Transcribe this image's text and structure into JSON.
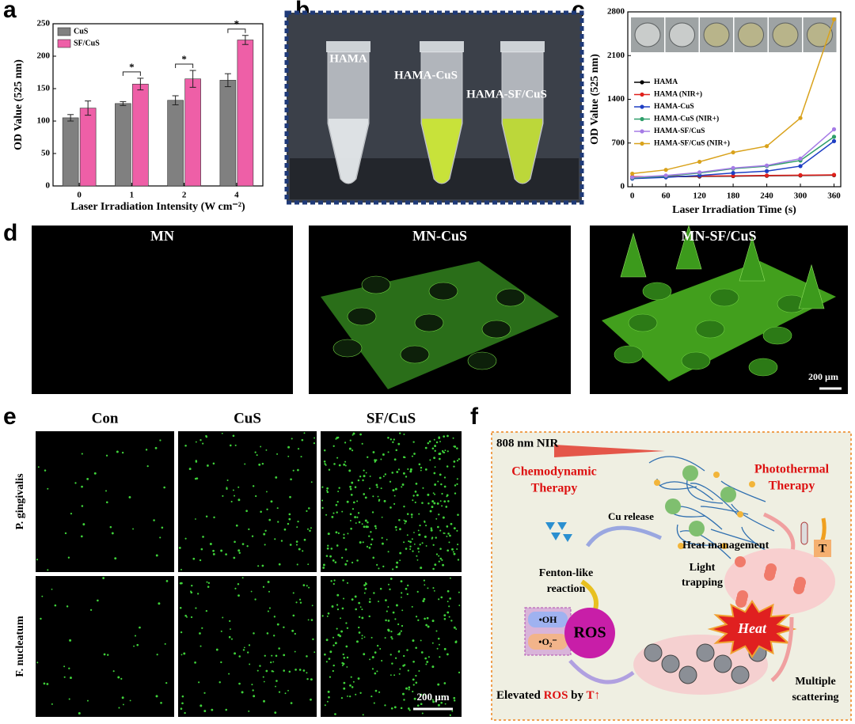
{
  "panel_labels": [
    "a",
    "b",
    "c",
    "d",
    "e",
    "f"
  ],
  "chart_data": [
    {
      "type": "bar",
      "xlabel": "Laser Irradiation Intensity (W cm⁻²)",
      "ylabel": "OD Value (525 nm)",
      "categories": [
        "0",
        "1",
        "2",
        "4"
      ],
      "series": [
        {
          "name": "CuS",
          "color": "#808080",
          "values": [
            105,
            127,
            132,
            163
          ],
          "errors": [
            5,
            3,
            7,
            10
          ]
        },
        {
          "name": "SF/CuS",
          "color": "#ee5fa7",
          "values": [
            120,
            157,
            165,
            225
          ],
          "errors": [
            11,
            9,
            13,
            7
          ]
        }
      ],
      "significance_labels": [
        null,
        "*",
        "*",
        "*"
      ],
      "ylim": [
        0,
        250
      ],
      "yticks": [
        0,
        50,
        100,
        150,
        200,
        250
      ],
      "legend": "upper left"
    },
    {
      "type": "line",
      "xlabel": "Laser Irradiation Time (s)",
      "ylabel": "OD Value (525 nm)",
      "x": [
        0,
        60,
        120,
        180,
        240,
        300,
        360
      ],
      "series": [
        {
          "name": "HAMA",
          "color": "#000000",
          "values": [
            150,
            160,
            165,
            170,
            175,
            180,
            185
          ]
        },
        {
          "name": "HAMA (NIR+)",
          "color": "#e0201b",
          "values": [
            160,
            165,
            170,
            175,
            180,
            185,
            190
          ]
        },
        {
          "name": "HAMA-CuS",
          "color": "#1f3fc4",
          "values": [
            130,
            150,
            180,
            220,
            250,
            330,
            730
          ]
        },
        {
          "name": "HAMA-CuS (NIR+)",
          "color": "#2e9e6a",
          "values": [
            140,
            170,
            220,
            290,
            330,
            420,
            800
          ]
        },
        {
          "name": "HAMA-SF/CuS",
          "color": "#a57be6",
          "values": [
            150,
            180,
            230,
            300,
            340,
            450,
            920
          ]
        },
        {
          "name": "HAMA-SF/CuS (NIR+)",
          "color": "#d9a21b",
          "values": [
            210,
            270,
            400,
            550,
            650,
            1100,
            2680
          ]
        }
      ],
      "xlim": [
        -8,
        372
      ],
      "xticks": [
        0,
        60,
        120,
        180,
        240,
        300,
        360
      ],
      "ylim": [
        0,
        2800
      ],
      "yticks": [
        0,
        700,
        1400,
        2100,
        2800
      ],
      "legend": "center left"
    }
  ],
  "photo_b": {
    "labels": [
      "HAMA",
      "HAMA-CuS",
      "HAMA-SF/CuS"
    ]
  },
  "confocal_d": {
    "titles": [
      "MN",
      "MN-CuS",
      "MN-SF/CuS"
    ],
    "scale_bar": "200 µm"
  },
  "fluorescence_e": {
    "columns": [
      "Con",
      "CuS",
      "SF/CuS"
    ],
    "rows": [
      "P. gingivalis",
      "F. nucleatum"
    ],
    "scale_bar": "200 µm"
  },
  "schematic_f": {
    "nir": "808 nm NIR",
    "chemodynamic": [
      "Chemodynamic",
      "Therapy"
    ],
    "photothermal": [
      "Photothermal",
      "Therapy"
    ],
    "cu_release": "Cu release",
    "heat_management": "Heat management",
    "t": "T",
    "light_trapping": [
      "Light",
      "trapping"
    ],
    "fenton": [
      "Fenton-like",
      "reaction"
    ],
    "oh": "•OH",
    "o2": "•O₂⁻",
    "ros": "ROS",
    "heat": "Heat",
    "multiple_scattering": [
      "Multiple",
      "scattering"
    ],
    "elevated": [
      "Elevated ",
      "ROS",
      " by ",
      "T↑"
    ]
  }
}
